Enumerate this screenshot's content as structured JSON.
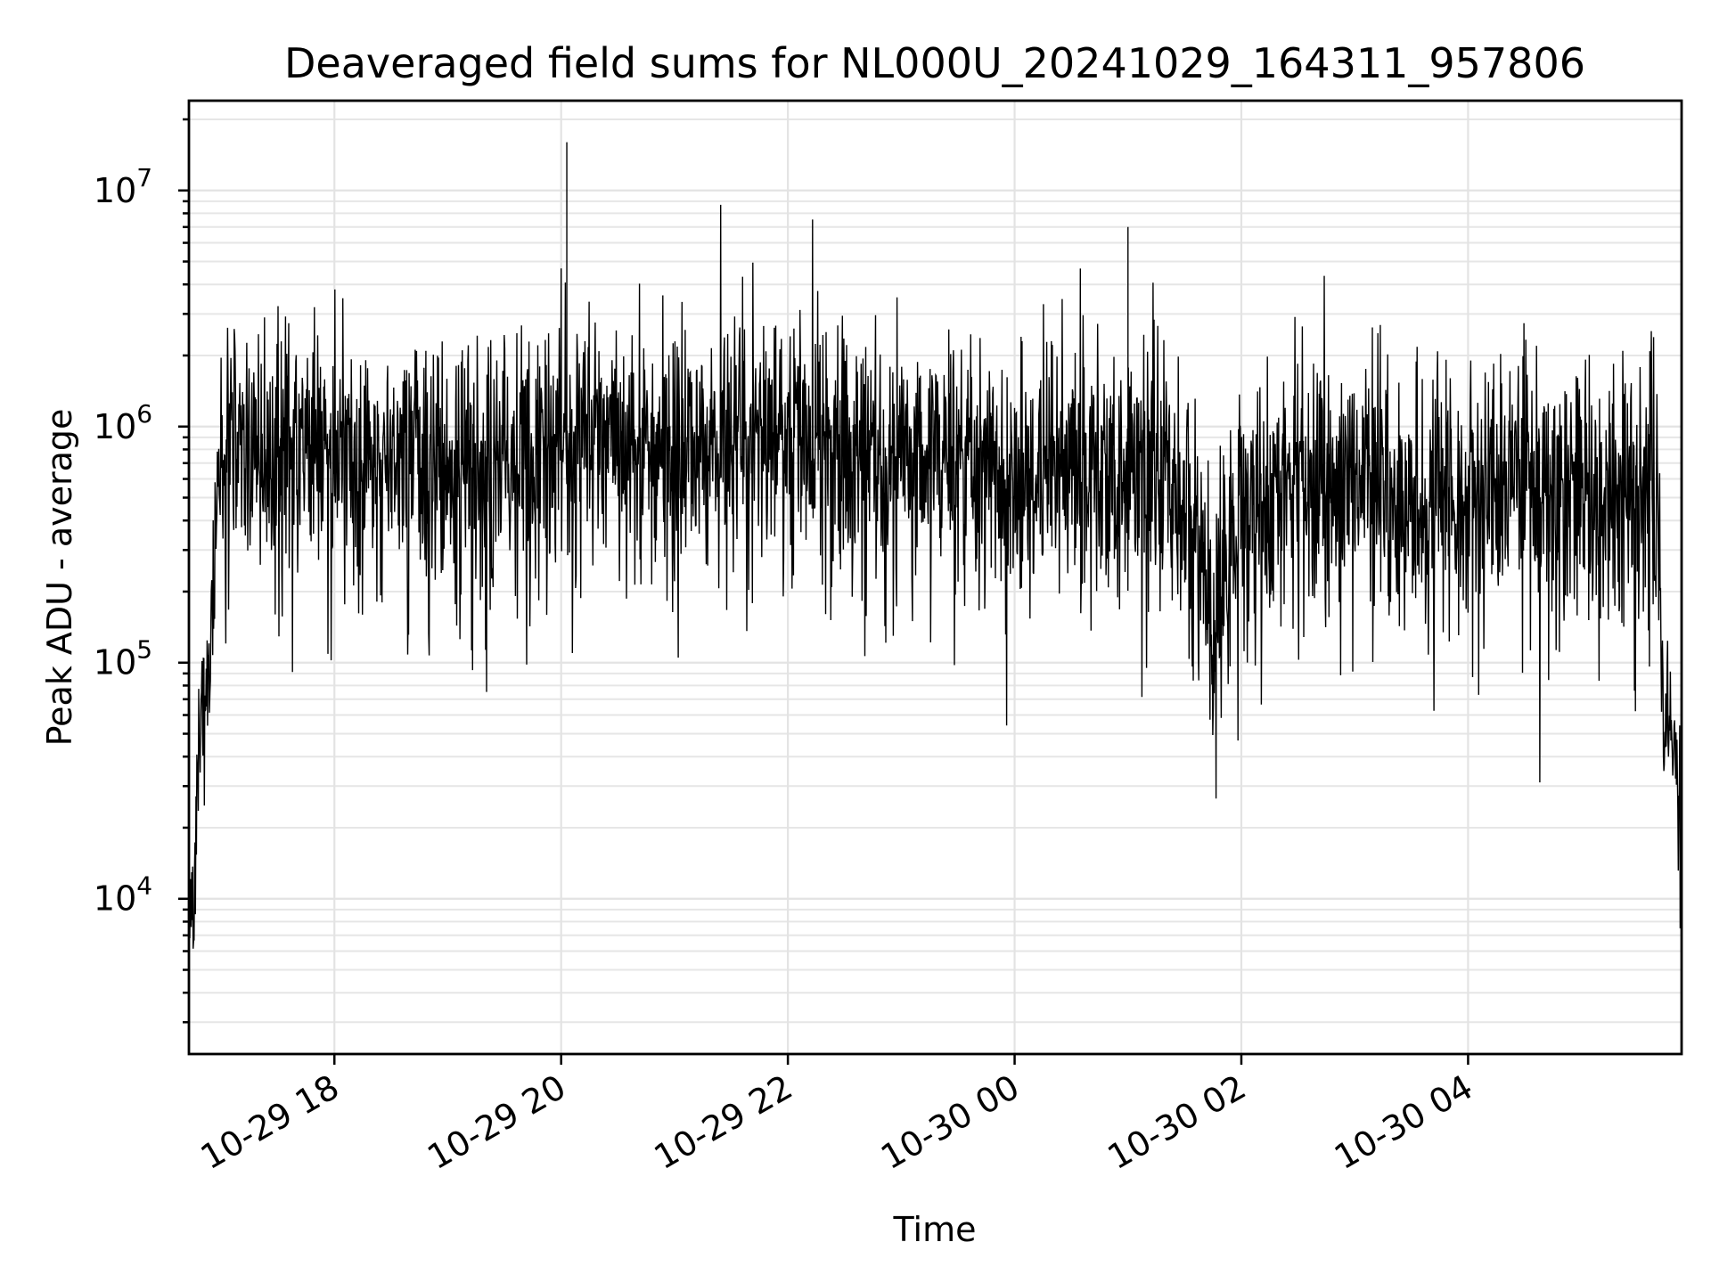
{
  "chart_data": {
    "type": "line",
    "title": "Deaveraged field sums for NL000U_20241029_164311_957806",
    "xlabel": "Time",
    "ylabel": "Peak ADU - average",
    "yscale": "log",
    "ylim": [
      2200,
      24000000
    ],
    "xlim": [
      "2024-10-29 16:43",
      "2024-10-30 05:53"
    ],
    "x_ticks": [
      "10-29 18",
      "10-29 20",
      "10-29 22",
      "10-30 00",
      "10-30 02",
      "10-30 04"
    ],
    "x_tick_values": [
      "2024-10-29 18:00",
      "2024-10-29 20:00",
      "2024-10-29 22:00",
      "2024-10-30 00:00",
      "2024-10-30 02:00",
      "2024-10-30 04:00"
    ],
    "y_ticks": [
      {
        "base": "10",
        "exp": "4",
        "value": 10000
      },
      {
        "base": "10",
        "exp": "5",
        "value": 100000
      },
      {
        "base": "10",
        "exp": "6",
        "value": 1000000
      },
      {
        "base": "10",
        "exp": "7",
        "value": 10000000
      }
    ],
    "grid": "major and minor",
    "line_color": "#000000",
    "series": [
      {
        "x": [
          "2024-10-29 16:43",
          "2024-10-29 16:45",
          "2024-10-29 16:47",
          "2024-10-29 16:49",
          "2024-10-29 16:52",
          "2024-10-29 16:55",
          "2024-10-29 16:58",
          "2024-10-29 17:02",
          "2024-10-29 17:06",
          "2024-10-29 17:12",
          "2024-10-29 17:20",
          "2024-10-29 17:30",
          "2024-10-29 17:45",
          "2024-10-29 18:00",
          "2024-10-29 18:20",
          "2024-10-29 18:40",
          "2024-10-29 19:00",
          "2024-10-29 19:20",
          "2024-10-29 19:40",
          "2024-10-29 20:00",
          "2024-10-29 20:20",
          "2024-10-29 20:40",
          "2024-10-29 21:00",
          "2024-10-29 21:30",
          "2024-10-29 22:00",
          "2024-10-29 22:30",
          "2024-10-29 23:00",
          "2024-10-29 23:30",
          "2024-10-30 00:00",
          "2024-10-30 00:30",
          "2024-10-30 01:00",
          "2024-10-30 01:30",
          "2024-10-30 01:45",
          "2024-10-30 02:00",
          "2024-10-30 02:30",
          "2024-10-30 03:00",
          "2024-10-30 03:30",
          "2024-10-30 04:00",
          "2024-10-30 04:30",
          "2024-10-30 05:00",
          "2024-10-30 05:20",
          "2024-10-30 05:30",
          "2024-10-30 05:36",
          "2024-10-30 05:40",
          "2024-10-30 05:44",
          "2024-10-30 05:48",
          "2024-10-30 05:53"
        ],
        "y": [
          12000,
          8000,
          30000,
          55000,
          70000,
          150000,
          500000,
          700000,
          800000,
          900000,
          800000,
          850000,
          750000,
          750000,
          700000,
          650000,
          650000,
          700000,
          700000,
          900000,
          950000,
          850000,
          800000,
          900000,
          950000,
          800000,
          750000,
          750000,
          600000,
          700000,
          700000,
          500000,
          150000,
          450000,
          550000,
          650000,
          500000,
          500000,
          550000,
          550000,
          500000,
          450000,
          900000,
          600000,
          40000,
          60000,
          20000
        ]
      }
    ],
    "notable_peaks": [
      {
        "x": "2024-10-29 20:03",
        "y": 16000000
      },
      {
        "x": "2024-10-30 01:00",
        "y": 7000000
      }
    ]
  }
}
